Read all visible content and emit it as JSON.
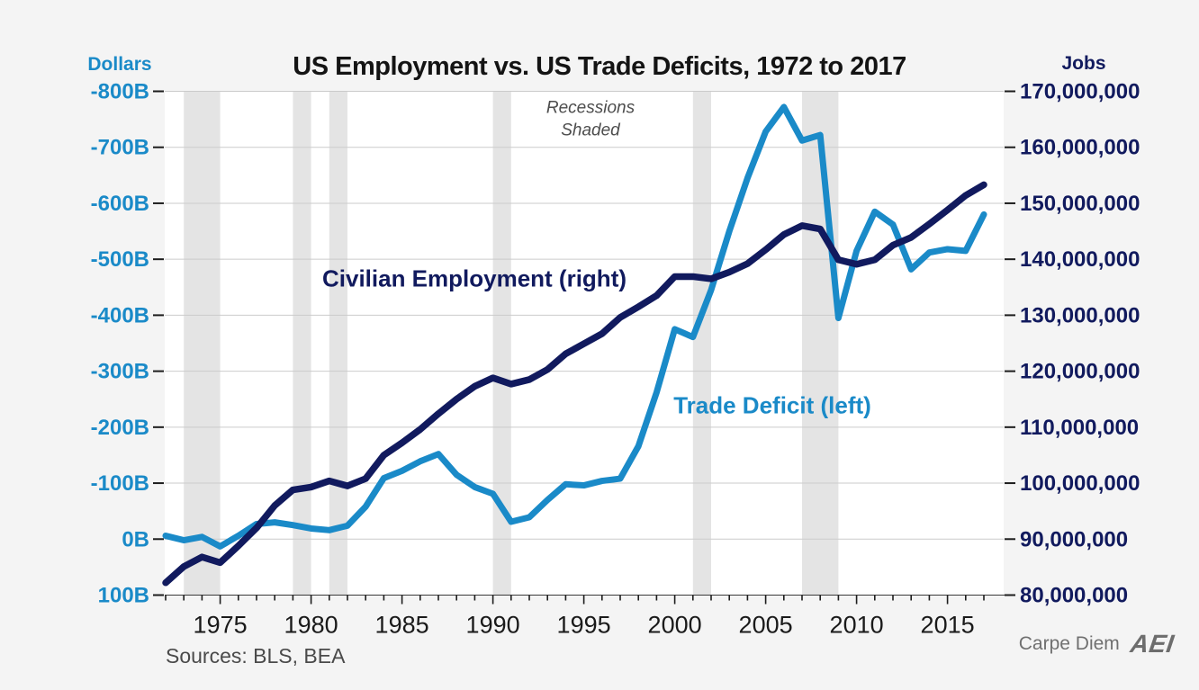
{
  "title": "US Employment vs. US Trade Deficits, 1972 to 2017",
  "left_axis": {
    "title": "Dollars",
    "ticks": [
      -800,
      -700,
      -600,
      -500,
      -400,
      -300,
      -200,
      -100,
      0,
      100
    ],
    "tick_labels": [
      "-800B",
      "-700B",
      "-600B",
      "-500B",
      "-400B",
      "-300B",
      "-200B",
      "-100B",
      "0B",
      "100B"
    ]
  },
  "right_axis": {
    "title": "Jobs",
    "ticks_millions": [
      170,
      160,
      150,
      140,
      130,
      120,
      110,
      100,
      90,
      80
    ],
    "tick_labels": [
      "170,000,000",
      "160,000,000",
      "150,000,000",
      "140,000,000",
      "130,000,000",
      "120,000,000",
      "110,000,000",
      "100,000,000",
      "90,000,000",
      "80,000,000"
    ]
  },
  "x_axis": {
    "range": [
      1972,
      2017
    ],
    "major_tick_years": [
      1975,
      1980,
      1985,
      1990,
      1995,
      2000,
      2005,
      2010,
      2015
    ],
    "major_tick_labels": [
      "1975",
      "1980",
      "1985",
      "1990",
      "1995",
      "2000",
      "2005",
      "2010",
      "2015"
    ],
    "minor_ticks_every_year": true
  },
  "annotations": {
    "recessions_note": [
      "Recessions",
      "Shaded"
    ],
    "employment_label": "Civilian Employment (right)",
    "trade_label": "Trade Deficit (left)"
  },
  "sources": "Sources: BLS, BEA",
  "branding": {
    "wordmark": "Carpe Diem",
    "logo": "AEI"
  },
  "colors": {
    "background": "#f4f4f4",
    "plot_background": "#ffffff",
    "recession_band": "#e4e4e4",
    "gridline": "#cbcbcb",
    "axis_ink": "#1d1d1d",
    "trade_deficit_blue": "#1a8ac8",
    "employment_navy": "#111a5e",
    "title_ink": "#141414",
    "note_gray": "#4d4d4d",
    "sources_gray": "#4a4a4a",
    "brand_gray": "#6d6d6d"
  },
  "chart_data": {
    "type": "line",
    "title": "US Employment vs. US Trade Deficits, 1972 to 2017",
    "x": [
      1972,
      1973,
      1974,
      1975,
      1976,
      1977,
      1978,
      1979,
      1980,
      1981,
      1982,
      1983,
      1984,
      1985,
      1986,
      1987,
      1988,
      1989,
      1990,
      1991,
      1992,
      1993,
      1994,
      1995,
      1996,
      1997,
      1998,
      1999,
      2000,
      2001,
      2002,
      2003,
      2004,
      2005,
      2006,
      2007,
      2008,
      2009,
      2010,
      2011,
      2012,
      2013,
      2014,
      2015,
      2016,
      2017
    ],
    "series": [
      {
        "name": "Trade Deficit (left)",
        "axis": "left",
        "unit": "billions of dollars",
        "color": "#1a8ac8",
        "values": [
          -6,
          2,
          -4,
          13,
          -6,
          -27,
          -30,
          -25,
          -19,
          -16,
          -24,
          -58,
          -109,
          -122,
          -139,
          -152,
          -115,
          -93,
          -81,
          -31,
          -39,
          -70,
          -98,
          -96,
          -104,
          -108,
          -166,
          -262,
          -375,
          -361,
          -445,
          -550,
          -645,
          -728,
          -772,
          -712,
          -722,
          -395,
          -515,
          -585,
          -562,
          -482,
          -512,
          -518,
          -515,
          -580
        ]
      },
      {
        "name": "Civilian Employment (right)",
        "axis": "right",
        "unit": "millions of jobs",
        "color": "#111a5e",
        "values": [
          82.2,
          85.1,
          86.8,
          85.8,
          88.8,
          92.0,
          96.0,
          98.8,
          99.3,
          100.4,
          99.5,
          100.8,
          105.0,
          107.2,
          109.6,
          112.4,
          115.0,
          117.3,
          118.8,
          117.7,
          118.5,
          120.3,
          123.1,
          124.9,
          126.7,
          129.6,
          131.5,
          133.5,
          136.9,
          136.9,
          136.5,
          137.7,
          139.2,
          141.7,
          144.4,
          146.0,
          145.4,
          139.9,
          139.1,
          139.9,
          142.5,
          143.9,
          146.3,
          148.8,
          151.4,
          153.3
        ]
      }
    ],
    "recessions": [
      [
        1973,
        1975
      ],
      [
        1979,
        1980
      ],
      [
        1981,
        1982
      ],
      [
        1990,
        1991
      ],
      [
        2001,
        2002
      ],
      [
        2007,
        2009
      ]
    ],
    "left_ylim": [
      -800,
      100
    ],
    "right_ylim_millions": [
      170,
      80
    ],
    "left_axis_inverted": true,
    "grid": true,
    "legend_position": "inline-labels"
  }
}
